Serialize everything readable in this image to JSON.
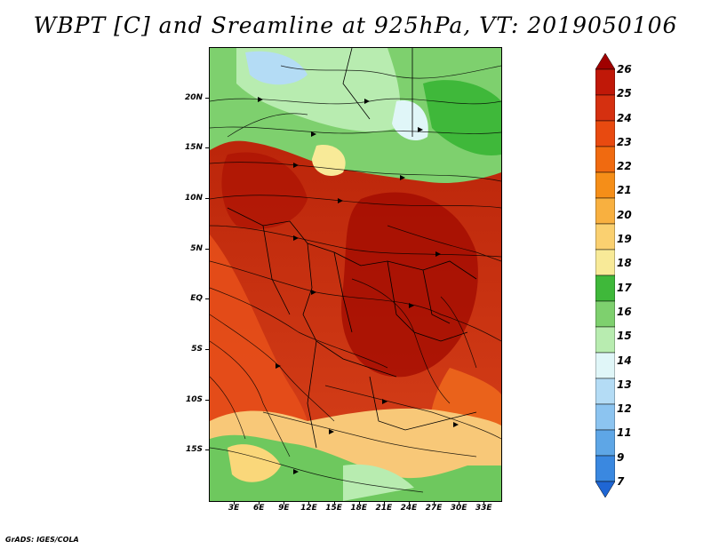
{
  "title": "WBPT [C] and Sreamline at 925hPa, VT: 2019050106",
  "footer": "GrADS: IGES/COLA",
  "map": {
    "lat_range": [
      -20,
      25
    ],
    "lon_range": [
      0,
      35
    ],
    "y_axis_labels": [
      "20N",
      "15N",
      "10N",
      "5N",
      "EQ",
      "5S",
      "10S",
      "15S"
    ],
    "y_axis_values": [
      20,
      15,
      10,
      5,
      0,
      -5,
      -10,
      -15
    ],
    "x_axis_labels": [
      "3E",
      "6E",
      "9E",
      "12E",
      "15E",
      "18E",
      "21E",
      "24E",
      "27E",
      "30E",
      "33E"
    ],
    "x_axis_values": [
      3,
      6,
      9,
      12,
      15,
      18,
      21,
      24,
      27,
      30,
      33
    ]
  },
  "colorbar": {
    "levels": [
      "26",
      "25",
      "24",
      "23",
      "22",
      "21",
      "20",
      "19",
      "18",
      "17",
      "16",
      "15",
      "14",
      "13",
      "12",
      "11",
      "9",
      "7"
    ],
    "colors": [
      "#a00000",
      "#c01808",
      "#d53010",
      "#e84a10",
      "#f06a10",
      "#f58e18",
      "#f8b040",
      "#fad070",
      "#f8ea98",
      "#3fb83a",
      "#7ed06e",
      "#b8ecb0",
      "#e0f6f8",
      "#b4dcf5",
      "#8cc4f0",
      "#5ea6e6",
      "#3a88e0",
      "#1f66d4"
    ]
  }
}
